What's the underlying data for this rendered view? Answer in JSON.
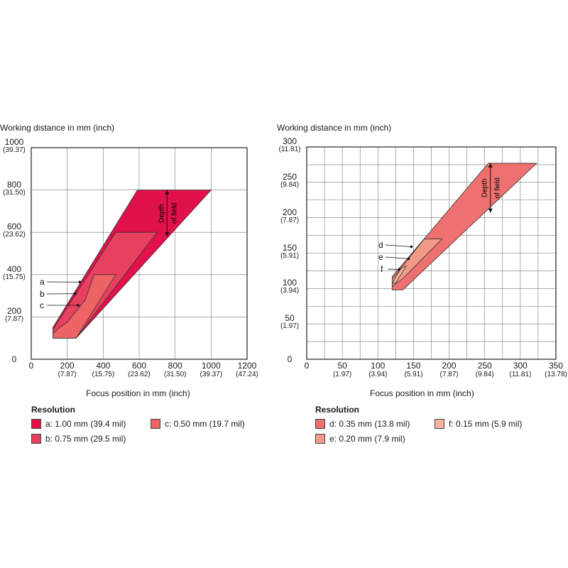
{
  "colors": {
    "a": "#e0114b",
    "b": "#e8405f",
    "c": "#ee6464",
    "d": "#ee7070",
    "e": "#f29a88",
    "f": "#f6b29e",
    "grid": "#333333"
  },
  "chart_data": [
    {
      "type": "area",
      "ylabel": "Working distance in mm (inch)",
      "xlabel": "Focus position in mm (inch)",
      "xlim": [
        0,
        1200
      ],
      "ylim": [
        0,
        1000
      ],
      "x_ticks": [
        {
          "value": 0,
          "label": "0",
          "sub": ""
        },
        {
          "value": 200,
          "label": "200",
          "sub": "(7.87)"
        },
        {
          "value": 400,
          "label": "400",
          "sub": "(15.75)"
        },
        {
          "value": 600,
          "label": "600",
          "sub": "(23.62)"
        },
        {
          "value": 800,
          "label": "800",
          "sub": "(31.50)"
        },
        {
          "value": 1000,
          "label": "1000",
          "sub": "(39.37)"
        },
        {
          "value": 1200,
          "label": "1200",
          "sub": "(47.24)"
        }
      ],
      "y_ticks": [
        {
          "value": 0,
          "label": "0",
          "sub": ""
        },
        {
          "value": 200,
          "label": "200",
          "sub": "(7.87)"
        },
        {
          "value": 400,
          "label": "400",
          "sub": "(15.75)"
        },
        {
          "value": 600,
          "label": "600",
          "sub": "(23.62)"
        },
        {
          "value": 800,
          "label": "800",
          "sub": "(31.50)"
        },
        {
          "value": 1000,
          "label": "1000",
          "sub": "(39.37)"
        }
      ],
      "grid": true,
      "dof_label": "Depth of field",
      "regions": [
        {
          "id": "a",
          "label": "a",
          "points": [
            [
              120,
              150
            ],
            [
              590,
              800
            ],
            [
              1000,
              800
            ],
            [
              250,
              100
            ],
            [
              120,
              100
            ]
          ]
        },
        {
          "id": "b",
          "label": "b",
          "points": [
            [
              120,
              140
            ],
            [
              470,
              600
            ],
            [
              700,
              600
            ],
            [
              250,
              100
            ],
            [
              120,
              100
            ]
          ]
        },
        {
          "id": "c",
          "label": "c",
          "points": [
            [
              120,
              120
            ],
            [
              150,
              145
            ],
            [
              200,
              175
            ],
            [
              300,
              280
            ],
            [
              350,
              400
            ],
            [
              470,
              400
            ],
            [
              250,
              100
            ],
            [
              120,
              100
            ]
          ]
        }
      ],
      "legend_title": "Resolution",
      "legend": [
        {
          "id": "a",
          "label": "a: 1.00 mm (39.4 mil)"
        },
        {
          "id": "b",
          "label": "b: 0.75 mm (29.5 mil)"
        },
        {
          "id": "c",
          "label": "c: 0.50 mm (19.7 mil)"
        }
      ]
    },
    {
      "type": "area",
      "ylabel": "Working distance in mm (inch)",
      "xlabel": "Focus position in mm (inch)",
      "xlim": [
        0,
        350
      ],
      "ylim": [
        0,
        300
      ],
      "x_ticks": [
        {
          "value": 0,
          "label": "0",
          "sub": ""
        },
        {
          "value": 50,
          "label": "50",
          "sub": "(1.97)"
        },
        {
          "value": 100,
          "label": "100",
          "sub": "(3.94)"
        },
        {
          "value": 150,
          "label": "150",
          "sub": "(5.91)"
        },
        {
          "value": 200,
          "label": "200",
          "sub": "(7.87)"
        },
        {
          "value": 250,
          "label": "250",
          "sub": "(9.84)"
        },
        {
          "value": 300,
          "label": "300",
          "sub": "(11.81)"
        },
        {
          "value": 350,
          "label": "350",
          "sub": "(13.78)"
        }
      ],
      "y_ticks": [
        {
          "value": 0,
          "label": "0",
          "sub": ""
        },
        {
          "value": 50,
          "label": "50",
          "sub": "(1.97)"
        },
        {
          "value": 100,
          "label": "100",
          "sub": "(3.94)"
        },
        {
          "value": 150,
          "label": "150",
          "sub": "(5.91)"
        },
        {
          "value": 200,
          "label": "200",
          "sub": "(7.87)"
        },
        {
          "value": 250,
          "label": "250",
          "sub": "(9.84)"
        },
        {
          "value": 300,
          "label": "300",
          "sub": "(11.81)"
        }
      ],
      "grid": true,
      "dof_label": "Depth of field",
      "regions": [
        {
          "id": "d",
          "label": "d",
          "points": [
            [
              120,
              117
            ],
            [
              255,
              277
            ],
            [
              323,
              277
            ],
            [
              135,
              98
            ],
            [
              120,
              98
            ]
          ]
        },
        {
          "id": "e",
          "label": "e",
          "points": [
            [
              120,
              113
            ],
            [
              165,
              170
            ],
            [
              190,
              170
            ],
            [
              135,
              114
            ],
            [
              120,
              103
            ]
          ]
        },
        {
          "id": "f",
          "label": "f",
          "points": [
            [
              120,
              107
            ],
            [
              132,
              128
            ],
            [
              140,
              132
            ],
            [
              125,
              108
            ]
          ]
        }
      ],
      "legend_title": "Resolution",
      "legend": [
        {
          "id": "d",
          "label": "d: 0.35 mm (13.8 mil)"
        },
        {
          "id": "e",
          "label": "e: 0.20 mm (7.9 mil)"
        },
        {
          "id": "f",
          "label": "f: 0.15 mm (5.9 mil)"
        }
      ]
    }
  ]
}
